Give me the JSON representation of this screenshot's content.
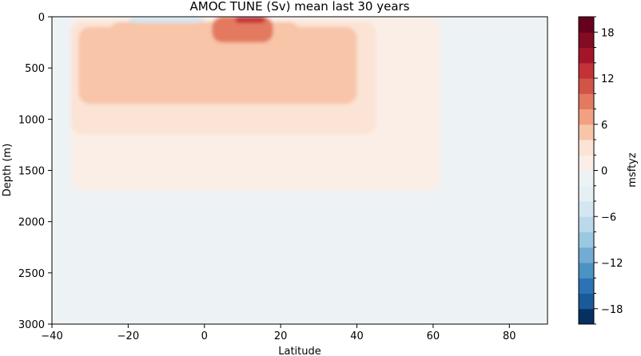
{
  "chart_data": {
    "type": "heatmap",
    "title": "AMOC TUNE (Sv) mean last 30 years",
    "xlabel": "Latitude",
    "ylabel": "Depth (m)",
    "xlim": [
      -40,
      90
    ],
    "ylim": [
      3000,
      0
    ],
    "y_inverted": true,
    "x_ticks": [
      -40,
      -20,
      0,
      20,
      40,
      60,
      80
    ],
    "x_tick_labels": [
      "−40",
      "−20",
      "0",
      "20",
      "40",
      "60",
      "80"
    ],
    "y_ticks": [
      0,
      500,
      1000,
      1500,
      2000,
      2500,
      3000
    ],
    "y_tick_labels": [
      "0",
      "500",
      "1000",
      "1500",
      "2000",
      "2500",
      "3000"
    ],
    "colorbar": {
      "label": "msftyz",
      "range": [
        -20,
        20
      ],
      "levels": [
        -20,
        -18,
        -16,
        -14,
        -12,
        -10,
        -8,
        -6,
        -4,
        -2,
        0,
        2,
        4,
        6,
        8,
        10,
        12,
        14,
        16,
        18,
        20
      ],
      "ticks": [
        -18,
        -12,
        -6,
        0,
        6,
        12,
        18
      ],
      "tick_labels": [
        "−18",
        "−12",
        "−6",
        "0",
        "6",
        "12",
        "18"
      ],
      "colors": [
        "#053061",
        "#1b5a9a",
        "#2b73b4",
        "#4a93c3",
        "#72acd2",
        "#9ac8e0",
        "#bad9ea",
        "#d4e6f1",
        "#e6eff4",
        "#edf2f5",
        "#faeee7",
        "#fbe3d5",
        "#f8c5a9",
        "#f1a181",
        "#e37a5f",
        "#d15447",
        "#c23238",
        "#a51529",
        "#830c24",
        "#67001f"
      ]
    },
    "grid": false,
    "regions": [
      {
        "x": [
          -40,
          90
        ],
        "depth": [
          0,
          3000
        ],
        "value": -1
      },
      {
        "x": [
          -35,
          62
        ],
        "depth": [
          0,
          1700
        ],
        "value": 1
      },
      {
        "x": [
          -35,
          45
        ],
        "depth": [
          50,
          1150
        ],
        "value": 3
      },
      {
        "x": [
          -33,
          40
        ],
        "depth": [
          100,
          850
        ],
        "value": 5
      },
      {
        "x": [
          -25,
          25
        ],
        "depth": [
          50,
          350
        ],
        "value": 5
      },
      {
        "x": [
          2,
          18
        ],
        "depth": [
          0,
          250
        ],
        "value": 9
      },
      {
        "x": [
          8,
          16
        ],
        "depth": [
          0,
          60
        ],
        "value": 13
      },
      {
        "x": [
          -20,
          0
        ],
        "depth": [
          0,
          60
        ],
        "value": -5
      }
    ]
  }
}
